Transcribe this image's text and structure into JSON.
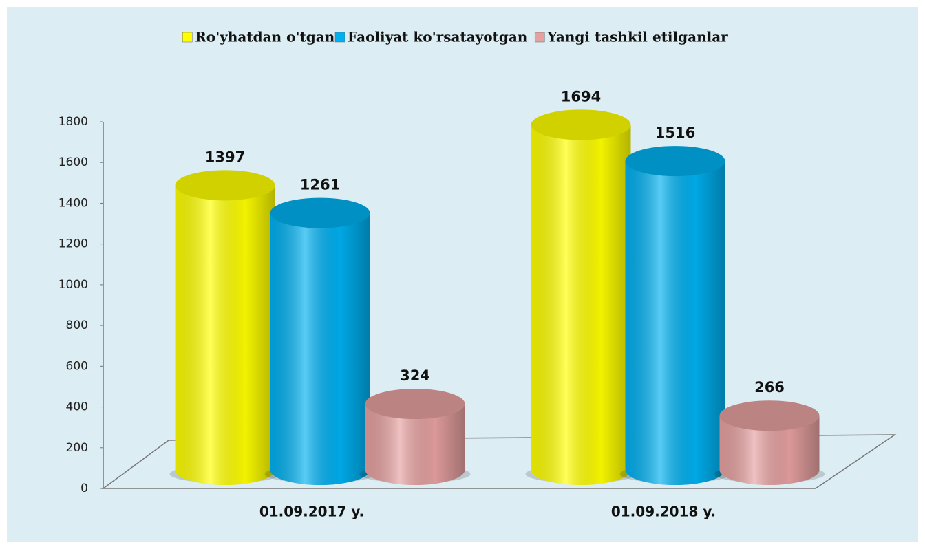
{
  "chart_data": {
    "type": "bar",
    "categories": [
      "01.09.2017 y.",
      "01.09.2018 y."
    ],
    "series": [
      {
        "name": "Ro'yhatdan o'tgan",
        "color": "#ffff00",
        "values": [
          1397,
          1694
        ]
      },
      {
        "name": "Faoliyat ko'rsatayotgan",
        "color": "#00b0f0",
        "values": [
          1261,
          1516
        ]
      },
      {
        "name": "Yangi tashkil etilganlar",
        "color": "#e6a0a0",
        "values": [
          324,
          266
        ]
      }
    ],
    "ylim": [
      0,
      1800
    ],
    "yticks": [
      0,
      200,
      400,
      600,
      800,
      1000,
      1200,
      1400,
      1600,
      1800
    ],
    "legend": "top"
  }
}
